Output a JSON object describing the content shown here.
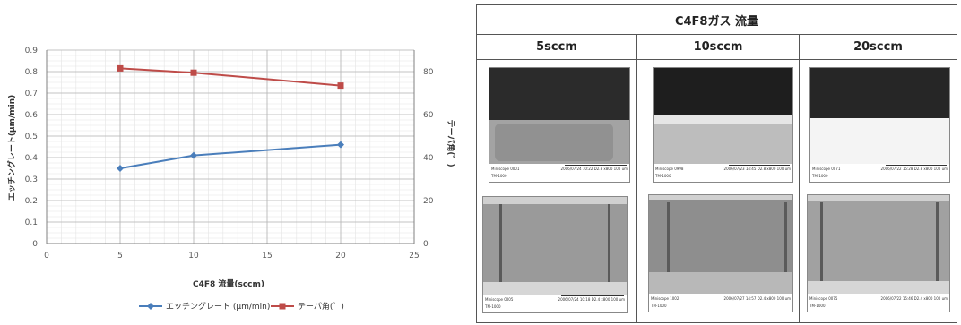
{
  "chart_data": {
    "type": "line",
    "title": "",
    "xlabel": "C4F8 流量(sccm)",
    "ylabel_left": "エッチングレート(μm/min)",
    "ylabel_right": "テーパ角(゜)",
    "xlim": [
      0,
      25
    ],
    "xticks": [
      "0",
      "5",
      "10",
      "15",
      "20",
      "25"
    ],
    "ylim_left": [
      0,
      0.9
    ],
    "yticks_left": [
      "0",
      "0.1",
      "0.2",
      "0.3",
      "0.4",
      "0.5",
      "0.6",
      "0.7",
      "0.8",
      "0.9"
    ],
    "ylim_right": [
      0,
      90
    ],
    "yticks_right": [
      "0",
      "20",
      "40",
      "60",
      "80"
    ],
    "grid": true,
    "legend_position": "bottom",
    "series": [
      {
        "name": "エッチングレート (μm/min)",
        "axis": "left",
        "color": "#4a7ebb",
        "marker": "diamond",
        "x": [
          5,
          10,
          20
        ],
        "y": [
          0.35,
          0.41,
          0.46
        ]
      },
      {
        "name": "テーパ角(゜)",
        "axis": "right",
        "color": "#be4b48",
        "marker": "square",
        "x": [
          5,
          10,
          20
        ],
        "y": [
          81.5,
          79.5,
          73.5
        ]
      }
    ]
  },
  "sem_table": {
    "title": "C4F8ガス 流量",
    "columns": [
      {
        "label": "5sccm",
        "cross": {
          "c1": "Miniscope 0001",
          "c2": "TM-1000",
          "c3": "2006/07/24 10:22  D2.8  x800  100 um"
        },
        "plan": {
          "c1": "Miniscope 0005",
          "c2": "TM-1000",
          "c3": "2006/07/24 10:18  D2.4  x800  100 um"
        }
      },
      {
        "label": "10sccm",
        "cross": {
          "c1": "Miniscope 0998",
          "c2": "TM-1000",
          "c3": "2006/07/23 14:45  D2.8  x800  100 um"
        },
        "plan": {
          "c1": "Miniscope 1002",
          "c2": "TM-1000",
          "c3": "2006/07/27 14:57  D2.4  x800  100 um"
        }
      },
      {
        "label": "20sccm",
        "cross": {
          "c1": "Miniscope 0071",
          "c2": "TM-1000",
          "c3": "2006/07/22 15:28  D2.8  x800  100 um"
        },
        "plan": {
          "c1": "Miniscope 0075",
          "c2": "TM-1000",
          "c3": "2006/07/22 15:46  D2.4  x800  100 um"
        }
      }
    ]
  }
}
